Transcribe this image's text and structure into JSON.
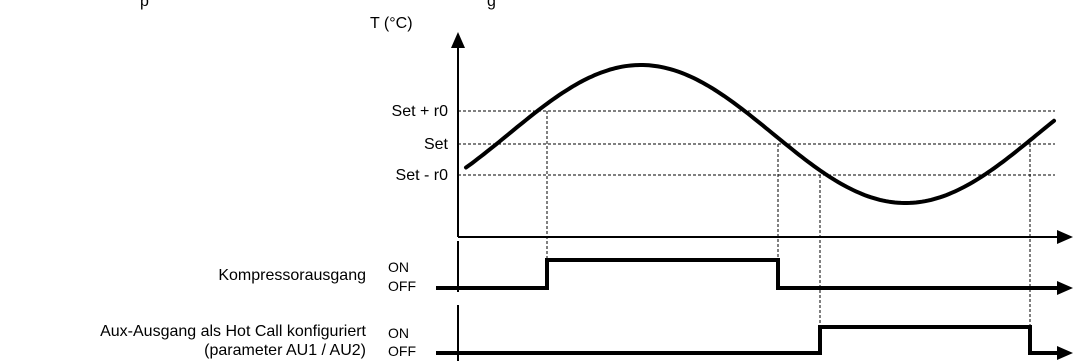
{
  "heading_fragment": "p",
  "heading_tail": "g",
  "y_axis_label": "T (°C)",
  "levels": [
    {
      "key": "set_plus_r0",
      "label": "Set + r0"
    },
    {
      "key": "set",
      "label": "Set"
    },
    {
      "key": "set_minus_r0",
      "label": "Set - r0"
    }
  ],
  "channels": [
    {
      "key": "compressor",
      "label_lines": [
        "Kompressorausgang"
      ],
      "on_label": "ON",
      "off_label": "OFF",
      "state": "ON between the upward crossing of Set + r0 and the downward crossing of Set"
    },
    {
      "key": "aux_hot_call",
      "label_lines": [
        "Aux-Ausgang als Hot Call konfiguriert",
        "(parameter AU1 / AU2)"
      ],
      "on_label": "ON",
      "off_label": "OFF",
      "state": "ON between the downward crossing of Set - r0 and the upward crossing of Set"
    }
  ],
  "colors": {
    "ink": "#000000",
    "guide": "#000000",
    "background": "#ffffff"
  }
}
